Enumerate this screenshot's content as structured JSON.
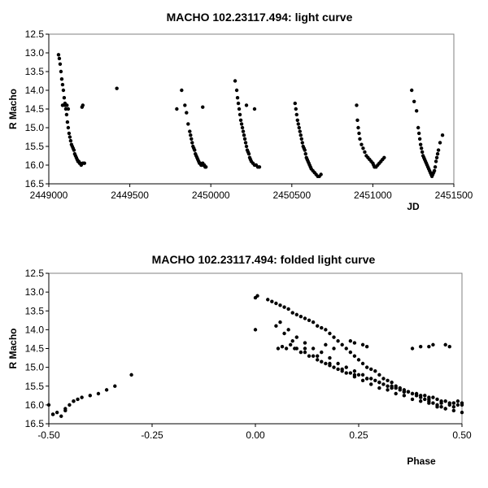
{
  "chart_data": [
    {
      "type": "scatter",
      "title": "MACHO 102.23117.494: light curve",
      "xlabel": "JD",
      "ylabel": "R Macho",
      "xlim": [
        2449000,
        2451500
      ],
      "ylim": [
        12.5,
        16.5
      ],
      "y_inverted": true,
      "grid": false,
      "xticks": [
        2449000,
        2449500,
        2450000,
        2450500,
        2451000,
        2451500
      ],
      "xtick_labels": [
        "2449000",
        "2449500",
        "2450000",
        "2450500",
        "2451000",
        "2451500"
      ],
      "yticks": [
        12.5,
        13.0,
        13.5,
        14.0,
        14.5,
        15.0,
        15.5,
        16.0,
        16.5
      ],
      "ytick_labels": [
        "12.5",
        "13.0",
        "13.5",
        "14.0",
        "14.5",
        "15.0",
        "15.5",
        "16.0",
        "16.5"
      ],
      "series": [
        {
          "x": [
            2449060,
            2449065,
            2449070,
            2449075,
            2449080,
            2449085,
            2449090,
            2449095,
            2449100,
            2449105,
            2449110,
            2449115,
            2449120,
            2449125,
            2449130,
            2449135,
            2449140,
            2449145,
            2449150,
            2449155,
            2449160,
            2449165,
            2449170,
            2449175,
            2449180,
            2449185,
            2449190,
            2449195,
            2449200,
            2449210,
            2449220,
            2449085,
            2449100,
            2449112,
            2449120,
            2449205,
            2449210,
            2449420,
            2449790,
            2449820,
            2449840,
            2449850,
            2449860,
            2449870,
            2449875,
            2449880,
            2449885,
            2449890,
            2449895,
            2449900,
            2449905,
            2449910,
            2449915,
            2449920,
            2449925,
            2449930,
            2449935,
            2449940,
            2449945,
            2449950,
            2449955,
            2449960,
            2449965,
            2449970,
            2449950,
            2450150,
            2450160,
            2450165,
            2450170,
            2450175,
            2450180,
            2450185,
            2450190,
            2450195,
            2450200,
            2450205,
            2450210,
            2450215,
            2450220,
            2450225,
            2450230,
            2450235,
            2450240,
            2450245,
            2450250,
            2450260,
            2450270,
            2450280,
            2450290,
            2450300,
            2450220,
            2450270,
            2450520,
            2450525,
            2450530,
            2450535,
            2450540,
            2450545,
            2450550,
            2450555,
            2450560,
            2450565,
            2450570,
            2450575,
            2450580,
            2450585,
            2450590,
            2450595,
            2450600,
            2450605,
            2450610,
            2450615,
            2450620,
            2450630,
            2450640,
            2450650,
            2450660,
            2450670,
            2450680,
            2450900,
            2450905,
            2450910,
            2450915,
            2450920,
            2450930,
            2450940,
            2450950,
            2450960,
            2450970,
            2450980,
            2450990,
            2451000,
            2451005,
            2451010,
            2451020,
            2451030,
            2451040,
            2451050,
            2451060,
            2451070,
            2451240,
            2451255,
            2451270,
            2451280,
            2451285,
            2451290,
            2451295,
            2451300,
            2451305,
            2451310,
            2451315,
            2451320,
            2451325,
            2451330,
            2451335,
            2451340,
            2451345,
            2451350,
            2451355,
            2451360,
            2451365,
            2451370,
            2451375,
            2451380,
            2451385,
            2451390,
            2451395,
            2451400,
            2451405,
            2451415,
            2451430
          ],
          "y": [
            13.05,
            13.15,
            13.3,
            13.5,
            13.7,
            13.85,
            14.0,
            14.2,
            14.35,
            14.5,
            14.65,
            14.85,
            15.0,
            15.15,
            15.25,
            15.35,
            15.45,
            15.5,
            15.55,
            15.6,
            15.7,
            15.75,
            15.8,
            15.85,
            15.9,
            15.9,
            15.95,
            15.95,
            16.0,
            15.95,
            15.95,
            14.4,
            14.4,
            14.4,
            14.5,
            14.45,
            14.4,
            13.95,
            14.5,
            14.0,
            14.4,
            14.6,
            14.9,
            15.1,
            15.2,
            15.3,
            15.4,
            15.5,
            15.55,
            15.6,
            15.7,
            15.75,
            15.8,
            15.85,
            15.9,
            15.95,
            15.95,
            16.0,
            16.0,
            15.95,
            16.0,
            16.0,
            16.05,
            16.05,
            14.45,
            13.75,
            14.0,
            14.2,
            14.35,
            14.5,
            14.65,
            14.8,
            14.9,
            15.0,
            15.1,
            15.2,
            15.3,
            15.4,
            15.5,
            15.6,
            15.65,
            15.7,
            15.8,
            15.85,
            15.9,
            15.95,
            16.0,
            16.0,
            16.05,
            16.05,
            14.4,
            14.5,
            14.35,
            14.5,
            14.65,
            14.8,
            14.9,
            15.0,
            15.1,
            15.2,
            15.3,
            15.4,
            15.5,
            15.55,
            15.6,
            15.7,
            15.8,
            15.85,
            15.9,
            15.95,
            16.0,
            16.05,
            16.1,
            16.15,
            16.2,
            16.25,
            16.3,
            16.3,
            16.25,
            14.4,
            14.8,
            15.0,
            15.15,
            15.3,
            15.45,
            15.55,
            15.65,
            15.75,
            15.8,
            15.85,
            15.9,
            15.95,
            16.0,
            16.05,
            16.05,
            16.0,
            15.95,
            15.9,
            15.85,
            15.8,
            14.0,
            14.3,
            14.55,
            15.0,
            15.15,
            15.3,
            15.45,
            15.55,
            15.65,
            15.75,
            15.8,
            15.85,
            15.9,
            15.95,
            16.0,
            16.05,
            16.1,
            16.15,
            16.2,
            16.25,
            16.3,
            16.25,
            16.2,
            16.15,
            16.05,
            15.9,
            15.8,
            15.7,
            15.6,
            15.4,
            15.2
          ]
        }
      ]
    },
    {
      "type": "scatter",
      "title": "MACHO 102.23117.494: folded light curve",
      "xlabel": "Phase",
      "ylabel": "R Macho",
      "xlim": [
        -0.5,
        0.5
      ],
      "ylim": [
        12.5,
        16.5
      ],
      "y_inverted": true,
      "grid": false,
      "xticks": [
        -0.5,
        -0.25,
        0.0,
        0.25,
        0.5
      ],
      "xtick_labels": [
        "-0.50",
        "-0.25",
        "0.00",
        "0.25",
        "0.50"
      ],
      "yticks": [
        12.5,
        13.0,
        13.5,
        14.0,
        14.5,
        15.0,
        15.5,
        16.0,
        16.5
      ],
      "ytick_labels": [
        "12.5",
        "13.0",
        "13.5",
        "14.0",
        "14.5",
        "15.0",
        "15.5",
        "16.0",
        "16.5"
      ],
      "series": [
        {
          "x": [
            -0.5,
            -0.49,
            -0.48,
            -0.47,
            -0.46,
            -0.45,
            -0.44,
            -0.43,
            -0.42,
            -0.4,
            -0.38,
            -0.36,
            -0.34,
            -0.3,
            -0.49,
            -0.46,
            -0.44,
            0.0,
            0.005,
            0.0,
            0.03,
            0.04,
            0.05,
            0.06,
            0.07,
            0.08,
            0.09,
            0.1,
            0.11,
            0.12,
            0.13,
            0.14,
            0.15,
            0.16,
            0.17,
            0.18,
            0.19,
            0.2,
            0.21,
            0.22,
            0.23,
            0.24,
            0.25,
            0.26,
            0.27,
            0.28,
            0.29,
            0.3,
            0.31,
            0.32,
            0.33,
            0.34,
            0.35,
            0.36,
            0.37,
            0.38,
            0.39,
            0.4,
            0.41,
            0.42,
            0.43,
            0.44,
            0.45,
            0.46,
            0.47,
            0.48,
            0.49,
            0.5,
            0.06,
            0.08,
            0.1,
            0.12,
            0.14,
            0.16,
            0.18,
            0.2,
            0.22,
            0.24,
            0.26,
            0.28,
            0.3,
            0.32,
            0.34,
            0.36,
            0.38,
            0.4,
            0.42,
            0.44,
            0.46,
            0.48,
            0.5,
            0.1,
            0.12,
            0.14,
            0.16,
            0.18,
            0.2,
            0.22,
            0.24,
            0.26,
            0.28,
            0.3,
            0.32,
            0.34,
            0.36,
            0.38,
            0.4,
            0.42,
            0.44,
            0.46,
            0.48,
            0.5,
            0.055,
            0.065,
            0.075,
            0.085,
            0.095,
            0.11,
            0.13,
            0.15,
            0.17,
            0.19,
            0.21,
            0.23,
            0.25,
            0.27,
            0.29,
            0.31,
            0.33,
            0.35,
            0.37,
            0.39,
            0.41,
            0.43,
            0.45,
            0.47,
            0.49,
            0.05,
            0.07,
            0.09,
            0.12,
            0.15,
            0.18,
            0.21,
            0.24,
            0.27,
            0.3,
            0.33,
            0.36,
            0.39,
            0.42,
            0.45,
            0.48,
            0.38,
            0.4,
            0.42,
            0.43,
            0.46,
            0.47,
            0.26,
            0.27,
            0.23,
            0.24,
            0.17,
            0.19
          ],
          "y": [
            16.0,
            16.25,
            16.2,
            16.3,
            16.15,
            16.0,
            15.9,
            15.85,
            15.8,
            15.75,
            15.7,
            15.6,
            15.5,
            15.2,
            16.25,
            16.1,
            15.9,
            13.15,
            13.1,
            14.0,
            13.2,
            13.25,
            13.3,
            13.35,
            13.4,
            13.45,
            13.55,
            13.6,
            13.65,
            13.7,
            13.75,
            13.8,
            13.9,
            13.95,
            14.0,
            14.1,
            14.2,
            14.3,
            14.4,
            14.5,
            14.6,
            14.7,
            14.8,
            14.9,
            15.0,
            15.05,
            15.1,
            15.2,
            15.3,
            15.35,
            15.4,
            15.5,
            15.55,
            15.6,
            15.65,
            15.7,
            15.75,
            15.8,
            15.85,
            15.9,
            15.95,
            16.0,
            16.05,
            16.1,
            16.0,
            15.95,
            15.9,
            15.95,
            13.8,
            14.0,
            14.2,
            14.35,
            14.5,
            14.6,
            14.75,
            14.9,
            15.0,
            15.1,
            15.2,
            15.3,
            15.4,
            15.5,
            15.55,
            15.65,
            15.7,
            15.75,
            15.8,
            15.85,
            15.9,
            15.95,
            16.0,
            14.5,
            14.6,
            14.7,
            14.85,
            14.95,
            15.05,
            15.15,
            15.25,
            15.35,
            15.45,
            15.55,
            15.6,
            15.7,
            15.75,
            15.85,
            15.9,
            15.95,
            16.05,
            16.1,
            16.15,
            16.2,
            14.5,
            14.45,
            14.5,
            14.4,
            14.5,
            14.6,
            14.7,
            14.8,
            14.9,
            15.0,
            15.1,
            15.15,
            15.2,
            15.3,
            15.35,
            15.45,
            15.5,
            15.6,
            15.65,
            15.7,
            15.75,
            15.8,
            15.9,
            15.95,
            16.0,
            13.9,
            14.1,
            14.3,
            14.5,
            14.7,
            14.9,
            15.05,
            15.2,
            15.3,
            15.4,
            15.55,
            15.65,
            15.75,
            15.85,
            15.95,
            16.05,
            14.5,
            14.45,
            14.45,
            14.4,
            14.4,
            14.45,
            14.4,
            14.45,
            14.3,
            14.35,
            14.4,
            14.5
          ]
        }
      ]
    }
  ]
}
